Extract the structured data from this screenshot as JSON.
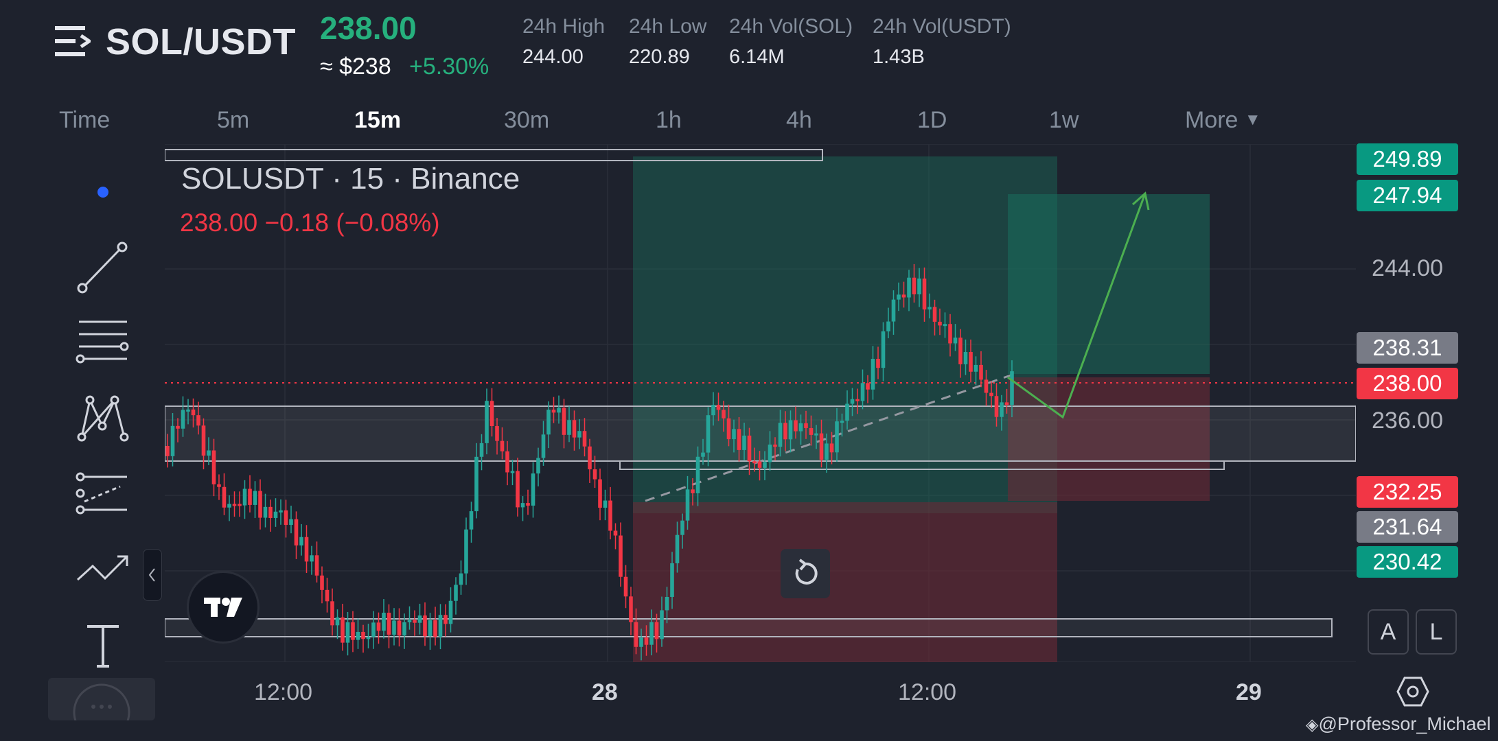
{
  "header": {
    "symbol": "SOL/USDT",
    "last_price": "238.00",
    "approx_usd": "≈ $238",
    "change_pct": "+5.30%",
    "stats": [
      {
        "label": "24h High",
        "value": "244.00"
      },
      {
        "label": "24h Low",
        "value": "220.89"
      },
      {
        "label": "24h Vol(SOL)",
        "value": "6.14M"
      },
      {
        "label": "24h Vol(USDT)",
        "value": "1.43B"
      }
    ]
  },
  "timeframes": {
    "items": [
      "Time",
      "5m",
      "15m",
      "30m",
      "1h",
      "4h",
      "1D",
      "1w",
      "More"
    ],
    "active": "15m"
  },
  "chart": {
    "legend_title": "SOLUSDT · 15 · Binance",
    "legend_ohlc": "238.00  −0.18 (−0.08%)",
    "price_labels": {
      "top_green": "249.89",
      "target_green": "247.94",
      "gray_upper": "238.31",
      "current_red": "238.00",
      "stop_red": "232.25",
      "gray_lower": "231.64",
      "entry_green": "230.42"
    },
    "axis_prices": [
      "244.00",
      "236.00"
    ],
    "time_labels": [
      "12:00",
      "28",
      "12:00",
      "29"
    ],
    "scale_buttons": [
      "A",
      "L"
    ],
    "colors": {
      "up": "#26a69a",
      "down": "#f23645",
      "profit_zone": "#1e6b5b",
      "loss_zone": "#6b2a36",
      "accent_blue": "#2962ff",
      "target_arrow": "#4caf50"
    }
  },
  "icons": {
    "menu": "menu-icon",
    "tools": [
      "cursor-dot-icon",
      "trend-line-icon",
      "fib-lines-icon",
      "pattern-icon",
      "forecast-icon",
      "chart-line-icon",
      "text-tool-icon",
      "more-tools-icon"
    ],
    "reset": "reset-icon",
    "settings": "settings-icon",
    "watermark_logo": "binance-logo-icon"
  },
  "watermark": "@Professor_Michael"
}
